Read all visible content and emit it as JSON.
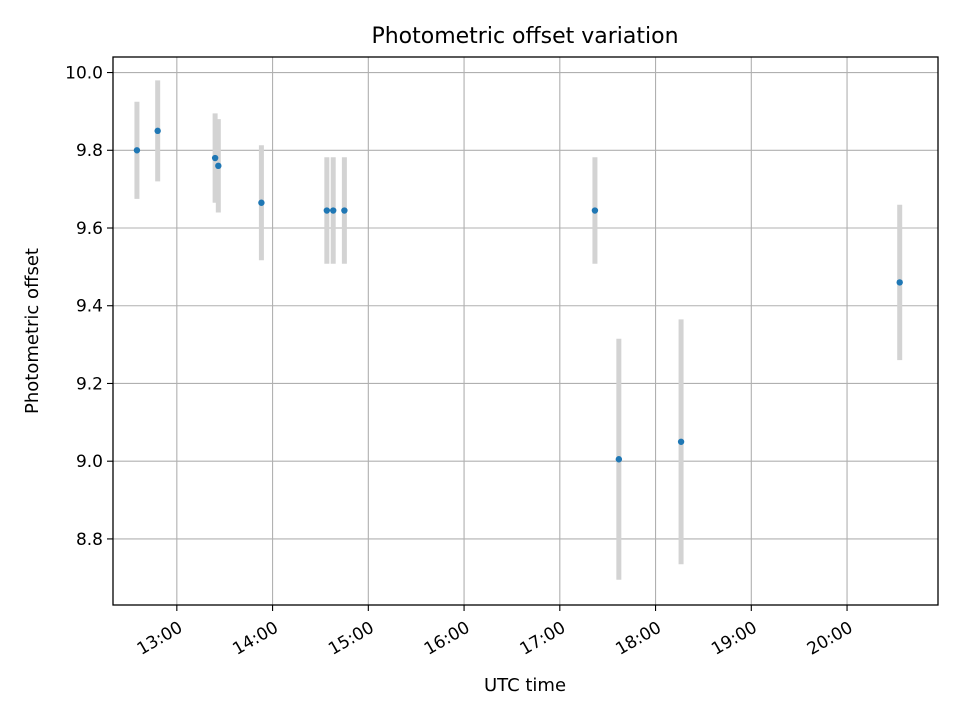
{
  "chart_data": {
    "type": "scatter",
    "title": "Photometric offset variation",
    "xlabel": "UTC time",
    "ylabel": "Photometric offset",
    "grid": true,
    "x_axis": {
      "min": "12:20",
      "max": "20:57",
      "ticks": [
        "13:00",
        "14:00",
        "15:00",
        "16:00",
        "17:00",
        "18:00",
        "19:00",
        "20:00"
      ]
    },
    "y_axis": {
      "min": 8.63,
      "max": 10.04,
      "ticks": [
        "8.8",
        "9.0",
        "9.2",
        "9.4",
        "9.6",
        "9.8",
        "10.0"
      ]
    },
    "series": [
      {
        "points": [
          {
            "x": "12:35",
            "y": 9.8,
            "err": 0.125
          },
          {
            "x": "12:48",
            "y": 9.85,
            "err": 0.13
          },
          {
            "x": "13:24",
            "y": 9.78,
            "err": 0.115
          },
          {
            "x": "13:26",
            "y": 9.76,
            "err": 0.12
          },
          {
            "x": "13:53",
            "y": 9.665,
            "err": 0.148
          },
          {
            "x": "14:34",
            "y": 9.645,
            "err": 0.137
          },
          {
            "x": "14:38",
            "y": 9.645,
            "err": 0.137
          },
          {
            "x": "14:45",
            "y": 9.645,
            "err": 0.137
          },
          {
            "x": "17:22",
            "y": 9.645,
            "err": 0.137
          },
          {
            "x": "17:37",
            "y": 9.005,
            "err": 0.31
          },
          {
            "x": "18:16",
            "y": 9.05,
            "err": 0.315
          },
          {
            "x": "20:33",
            "y": 9.46,
            "err": 0.2
          }
        ],
        "color": "#1f77b4",
        "errorbar_color": "#d3d3d3"
      }
    ]
  }
}
